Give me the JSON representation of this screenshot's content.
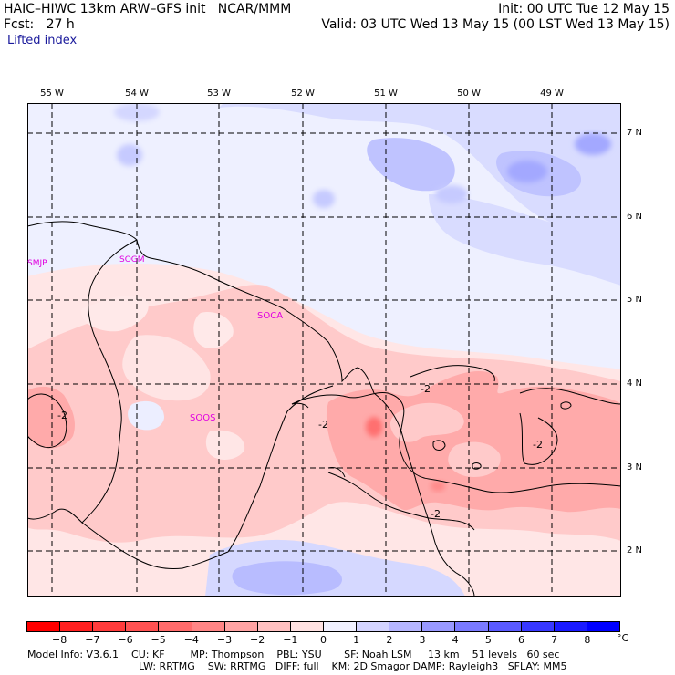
{
  "header": {
    "line1_left": "HAIC–HIWC 13km ARW–GFS init   NCAR/MMM",
    "line1_right": "Init: 00 UTC Tue 12 May 15",
    "line2_left": "Fcst:   27 h",
    "line2_right": "Valid: 03 UTC Wed 13 May 15 (00 LST Wed 13 May 15)",
    "line3": "Lifted index"
  },
  "map": {
    "lon_labels": [
      "55 W",
      "54 W",
      "53 W",
      "52 W",
      "51 W",
      "50 W",
      "49 W"
    ],
    "lat_labels": [
      "7 N",
      "6 N",
      "5 N",
      "4 N",
      "3 N",
      "2 N"
    ],
    "stations": [
      "SMJP",
      "SOGM",
      "SOCA",
      "SOOS"
    ],
    "contour_labels": [
      "-2",
      "-2",
      "-2",
      "-2",
      "-2"
    ]
  },
  "colorbar": {
    "ticks": [
      "−8",
      "−7",
      "−6",
      "−5",
      "−4",
      "−3",
      "−2",
      "−1",
      "0",
      "1",
      "2",
      "3",
      "4",
      "5",
      "6",
      "7",
      "8"
    ],
    "unit": "°C",
    "colors": [
      "#ff0000",
      "#ff2020",
      "#ff3b3b",
      "#ff5252",
      "#ff6b6b",
      "#ff8585",
      "#ffa3a3",
      "#ffc1c1",
      "#ffe2e2",
      "#f1f1ff",
      "#d4d4ff",
      "#b6b6ff",
      "#9999ff",
      "#7a7aff",
      "#5a5aff",
      "#3838ff",
      "#1a1aff",
      "#0000ff"
    ]
  },
  "footer": {
    "line1": "Model Info: V3.6.1    CU: KF        MP: Thompson    PBL: YSU       SF: Noah LSM     13 km    51 levels   60 sec",
    "line2": "LW: RRTMG    SW: RRTMG   DIFF: full    KM: 2D Smagor DAMP: Rayleigh3   SFLAY: MM5"
  }
}
